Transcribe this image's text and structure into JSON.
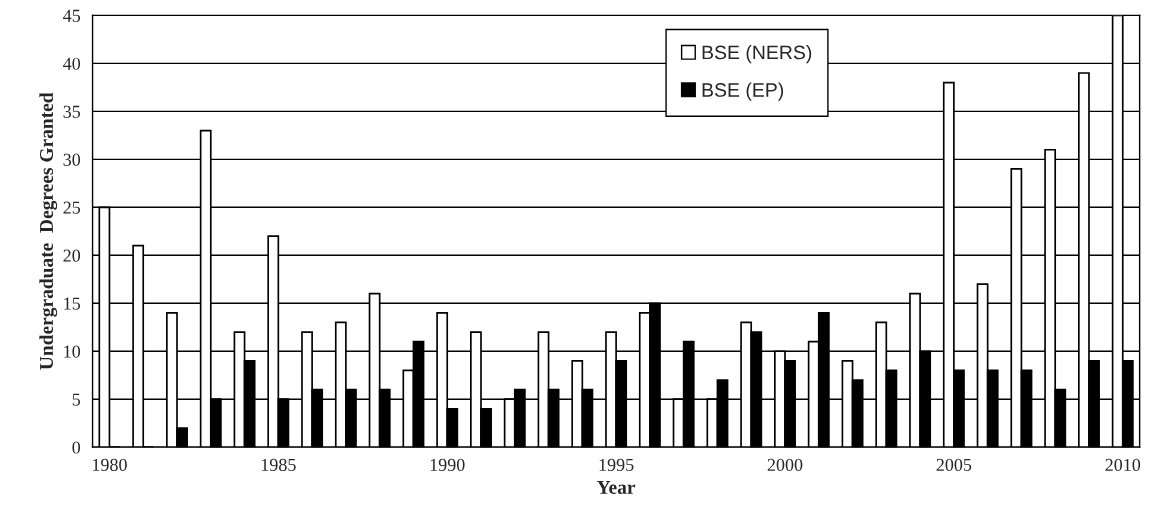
{
  "chart_data": {
    "type": "bar",
    "xlabel": "Year",
    "ylabel": "Undergraduate  Degrees Granted",
    "categories": [
      "1980",
      null,
      null,
      null,
      null,
      "1985",
      null,
      null,
      null,
      null,
      "1990",
      null,
      null,
      null,
      null,
      "1995",
      null,
      null,
      null,
      null,
      "2000",
      null,
      null,
      null,
      null,
      "2005",
      null,
      null,
      null,
      null,
      "2010"
    ],
    "series": [
      {
        "name": "BSE (NERS)",
        "color": "#ffffff",
        "values": [
          25,
          21,
          14,
          33,
          12,
          22,
          12,
          13,
          16,
          8,
          14,
          12,
          5,
          12,
          9,
          12,
          14,
          5,
          5,
          13,
          10,
          11,
          9,
          13,
          16,
          38,
          17,
          29,
          31,
          39,
          45
        ]
      },
      {
        "name": "BSE (EP)",
        "color": "#000000",
        "values": [
          0,
          0,
          2,
          5,
          9,
          5,
          6,
          6,
          6,
          11,
          4,
          4,
          6,
          6,
          6,
          9,
          15,
          11,
          7,
          12,
          9,
          14,
          7,
          8,
          10,
          8,
          8,
          8,
          6,
          9,
          9
        ]
      }
    ],
    "ylim": [
      0,
      45
    ],
    "yticks": [
      0,
      5,
      10,
      15,
      20,
      25,
      30,
      35,
      40,
      45
    ],
    "grid": "y",
    "legend": "top"
  }
}
